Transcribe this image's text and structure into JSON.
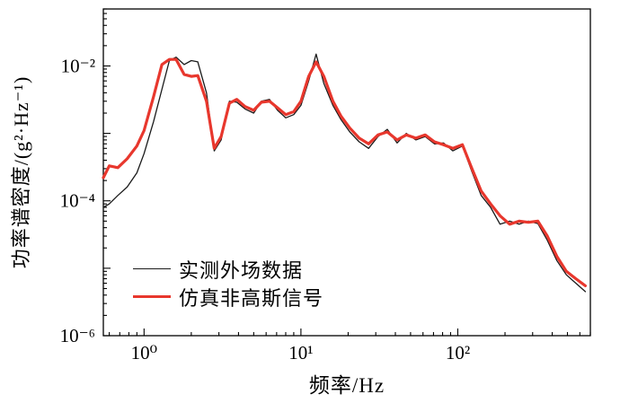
{
  "chart_data": {
    "type": "line",
    "title": "",
    "xlabel": "频率/Hz",
    "ylabel": "功率谱密度/(g²·Hz⁻¹)",
    "x_scale": "log",
    "y_scale": "log",
    "xlim": [
      0.55,
      700
    ],
    "ylim": [
      1e-06,
      0.07
    ],
    "grid": false,
    "legend_position": "lower-left",
    "x_ticks": [
      {
        "value": 1,
        "label": "10⁰"
      },
      {
        "value": 10,
        "label": "10¹"
      },
      {
        "value": 100,
        "label": "10²"
      }
    ],
    "y_ticks": [
      {
        "value": 0.01,
        "label": "10⁻²"
      },
      {
        "value": 0.0001,
        "label": "10⁻⁴"
      },
      {
        "value": 1e-06,
        "label": "10⁻⁶"
      }
    ],
    "x": [
      0.55,
      0.6,
      0.68,
      0.78,
      0.9,
      1.0,
      1.15,
      1.3,
      1.45,
      1.6,
      1.8,
      2.0,
      2.2,
      2.5,
      2.8,
      3.1,
      3.5,
      3.9,
      4.4,
      5.0,
      5.6,
      6.3,
      7.1,
      8.0,
      9.0,
      10.0,
      11.2,
      12.5,
      14.0,
      16.0,
      18.0,
      20.5,
      23.5,
      27.0,
      31.0,
      35.5,
      41.0,
      47.0,
      54.0,
      62.0,
      71.0,
      81.0,
      93.0,
      107.0,
      123.0,
      141.0,
      162.0,
      186.0,
      214.0,
      246.0,
      282.0,
      324.0,
      372.0,
      428.0,
      492.0,
      565.0,
      650.0
    ],
    "series": [
      {
        "id": "measured",
        "name": "实测外场数据",
        "color": "#1a1a1a",
        "line_width": 1.3,
        "values": [
          8e-05,
          9e-05,
          0.00012,
          0.00016,
          0.00026,
          0.0005,
          0.0015,
          0.0045,
          0.012,
          0.0135,
          0.0105,
          0.012,
          0.0115,
          0.004,
          0.00055,
          0.0008,
          0.003,
          0.0029,
          0.0023,
          0.002,
          0.003,
          0.0032,
          0.0022,
          0.0017,
          0.0019,
          0.0026,
          0.006,
          0.015,
          0.0055,
          0.0026,
          0.0016,
          0.00105,
          0.00075,
          0.0006,
          0.0009,
          0.00115,
          0.00072,
          0.001,
          0.0008,
          0.0009,
          0.0007,
          0.00072,
          0.00055,
          0.00065,
          0.00027,
          0.00012,
          8e-05,
          4.5e-05,
          5e-05,
          4.5e-05,
          5e-05,
          4.6e-05,
          2.6e-05,
          1.3e-05,
          8e-06,
          6e-06,
          4.5e-06
        ]
      },
      {
        "id": "simulated",
        "name": "仿真非高斯信号",
        "color": "#e8372d",
        "line_width": 3.2,
        "values": [
          0.00022,
          0.00033,
          0.00031,
          0.00042,
          0.00065,
          0.0011,
          0.0035,
          0.0105,
          0.0125,
          0.0125,
          0.0075,
          0.007,
          0.0072,
          0.003,
          0.0006,
          0.0009,
          0.0028,
          0.0032,
          0.0025,
          0.0022,
          0.0029,
          0.003,
          0.0024,
          0.0019,
          0.0021,
          0.003,
          0.007,
          0.0115,
          0.007,
          0.003,
          0.0018,
          0.0012,
          0.00085,
          0.0007,
          0.00095,
          0.00105,
          0.0008,
          0.00095,
          0.00085,
          0.00095,
          0.00075,
          0.00068,
          0.0006,
          0.00068,
          0.0003,
          0.00014,
          9e-05,
          6e-05,
          4.5e-05,
          5e-05,
          4.8e-05,
          5e-05,
          3e-05,
          1.5e-05,
          9e-06,
          7e-06,
          5.5e-06
        ]
      }
    ]
  }
}
